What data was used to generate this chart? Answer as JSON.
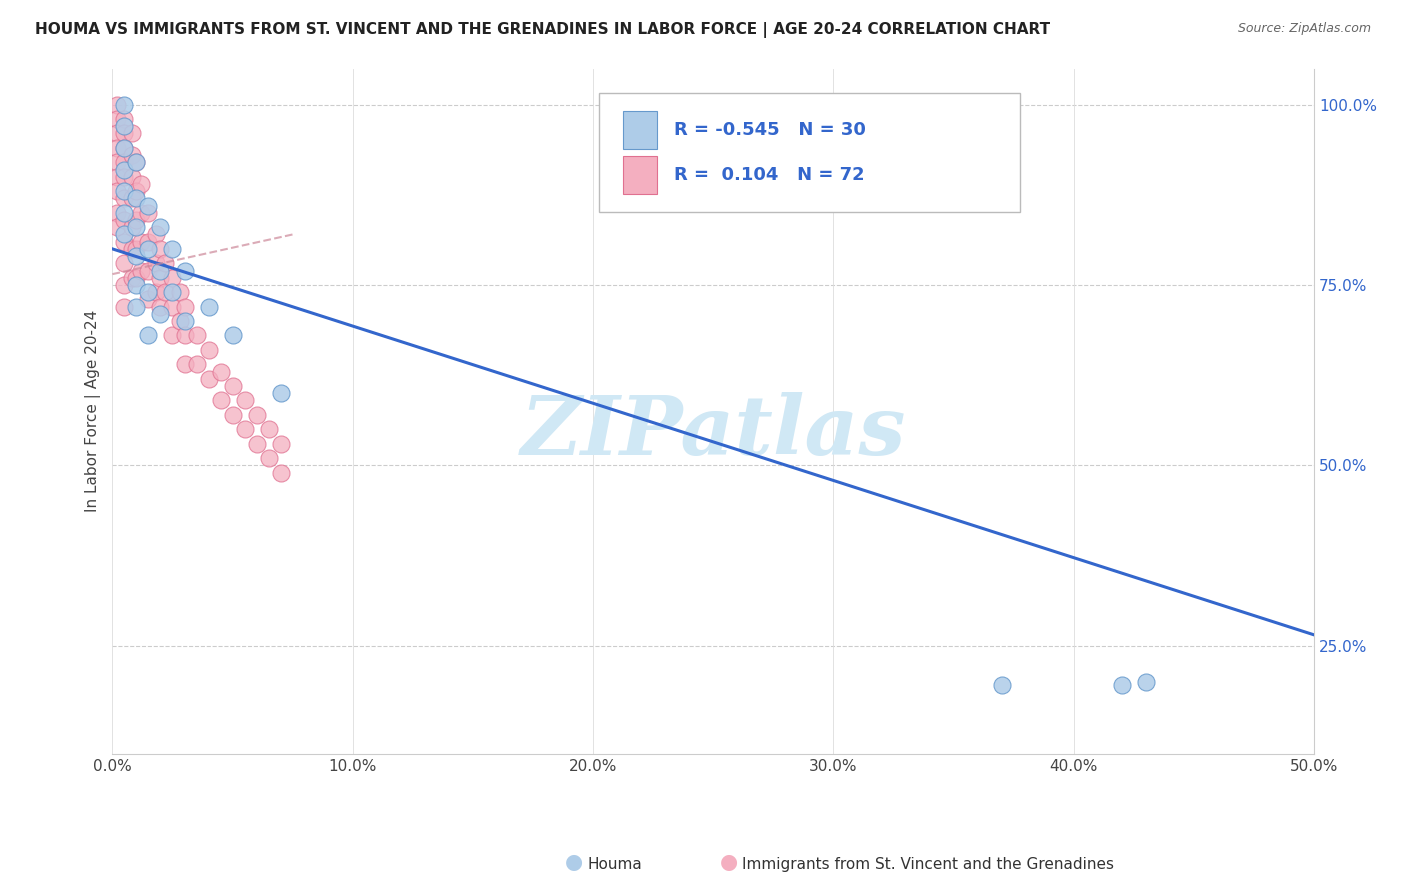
{
  "title": "HOUMA VS IMMIGRANTS FROM ST. VINCENT AND THE GRENADINES IN LABOR FORCE | AGE 20-24 CORRELATION CHART",
  "source": "Source: ZipAtlas.com",
  "ylabel": "In Labor Force | Age 20-24",
  "x_min": 0.0,
  "x_max": 0.5,
  "y_min": 0.1,
  "y_max": 1.05,
  "x_ticks": [
    0.0,
    0.1,
    0.2,
    0.3,
    0.4,
    0.5
  ],
  "x_tick_labels": [
    "0.0%",
    "10.0%",
    "20.0%",
    "30.0%",
    "40.0%",
    "50.0%"
  ],
  "y_ticks": [
    0.25,
    0.5,
    0.75,
    1.0
  ],
  "y_tick_labels": [
    "25.0%",
    "50.0%",
    "75.0%",
    "100.0%"
  ],
  "houma_R": -0.545,
  "houma_N": 30,
  "immigrants_R": 0.104,
  "immigrants_N": 72,
  "houma_color": "#aecce8",
  "immigrants_color": "#f4afc0",
  "houma_edge_color": "#6699cc",
  "immigrants_edge_color": "#e07090",
  "houma_line_color": "#3366cc",
  "immigrants_line_color": "#cc8899",
  "watermark": "ZIPatlas",
  "watermark_color": "#d0e8f5",
  "legend_label_houma": "Houma",
  "legend_label_immigrants": "Immigrants from St. Vincent and the Grenadines",
  "houma_x": [
    0.005,
    0.005,
    0.005,
    0.005,
    0.005,
    0.005,
    0.005,
    0.01,
    0.01,
    0.01,
    0.01,
    0.01,
    0.01,
    0.015,
    0.015,
    0.015,
    0.015,
    0.02,
    0.02,
    0.02,
    0.025,
    0.025,
    0.03,
    0.03,
    0.04,
    0.05,
    0.07,
    0.37,
    0.42,
    0.43
  ],
  "houma_y": [
    1.0,
    0.97,
    0.94,
    0.91,
    0.88,
    0.85,
    0.82,
    0.92,
    0.87,
    0.83,
    0.79,
    0.75,
    0.72,
    0.86,
    0.8,
    0.74,
    0.68,
    0.83,
    0.77,
    0.71,
    0.8,
    0.74,
    0.77,
    0.7,
    0.72,
    0.68,
    0.6,
    0.195,
    0.195,
    0.2
  ],
  "immigrants_x": [
    0.002,
    0.002,
    0.002,
    0.002,
    0.002,
    0.002,
    0.002,
    0.002,
    0.002,
    0.005,
    0.005,
    0.005,
    0.005,
    0.005,
    0.005,
    0.005,
    0.005,
    0.005,
    0.005,
    0.005,
    0.008,
    0.008,
    0.008,
    0.008,
    0.008,
    0.008,
    0.008,
    0.01,
    0.01,
    0.01,
    0.01,
    0.01,
    0.012,
    0.012,
    0.012,
    0.012,
    0.015,
    0.015,
    0.015,
    0.015,
    0.018,
    0.018,
    0.018,
    0.02,
    0.02,
    0.02,
    0.022,
    0.022,
    0.025,
    0.025,
    0.025,
    0.028,
    0.028,
    0.03,
    0.03,
    0.03,
    0.035,
    0.035,
    0.04,
    0.04,
    0.045,
    0.045,
    0.05,
    0.05,
    0.055,
    0.055,
    0.06,
    0.06,
    0.065,
    0.065,
    0.07,
    0.07
  ],
  "immigrants_y": [
    1.0,
    0.98,
    0.96,
    0.94,
    0.92,
    0.9,
    0.88,
    0.85,
    0.83,
    0.98,
    0.96,
    0.94,
    0.92,
    0.9,
    0.87,
    0.84,
    0.81,
    0.78,
    0.75,
    0.72,
    0.96,
    0.93,
    0.9,
    0.87,
    0.83,
    0.8,
    0.76,
    0.92,
    0.88,
    0.84,
    0.8,
    0.76,
    0.89,
    0.85,
    0.81,
    0.77,
    0.85,
    0.81,
    0.77,
    0.73,
    0.82,
    0.78,
    0.74,
    0.8,
    0.76,
    0.72,
    0.78,
    0.74,
    0.76,
    0.72,
    0.68,
    0.74,
    0.7,
    0.72,
    0.68,
    0.64,
    0.68,
    0.64,
    0.66,
    0.62,
    0.63,
    0.59,
    0.61,
    0.57,
    0.59,
    0.55,
    0.57,
    0.53,
    0.55,
    0.51,
    0.53,
    0.49
  ],
  "houma_line_x": [
    0.0,
    0.5
  ],
  "houma_line_y": [
    0.8,
    0.265
  ],
  "imm_line_x": [
    0.0,
    0.075
  ],
  "imm_line_y": [
    0.765,
    0.82
  ],
  "bg_grid_color": "#dddddd",
  "dashed_grid_color": "#cccccc"
}
